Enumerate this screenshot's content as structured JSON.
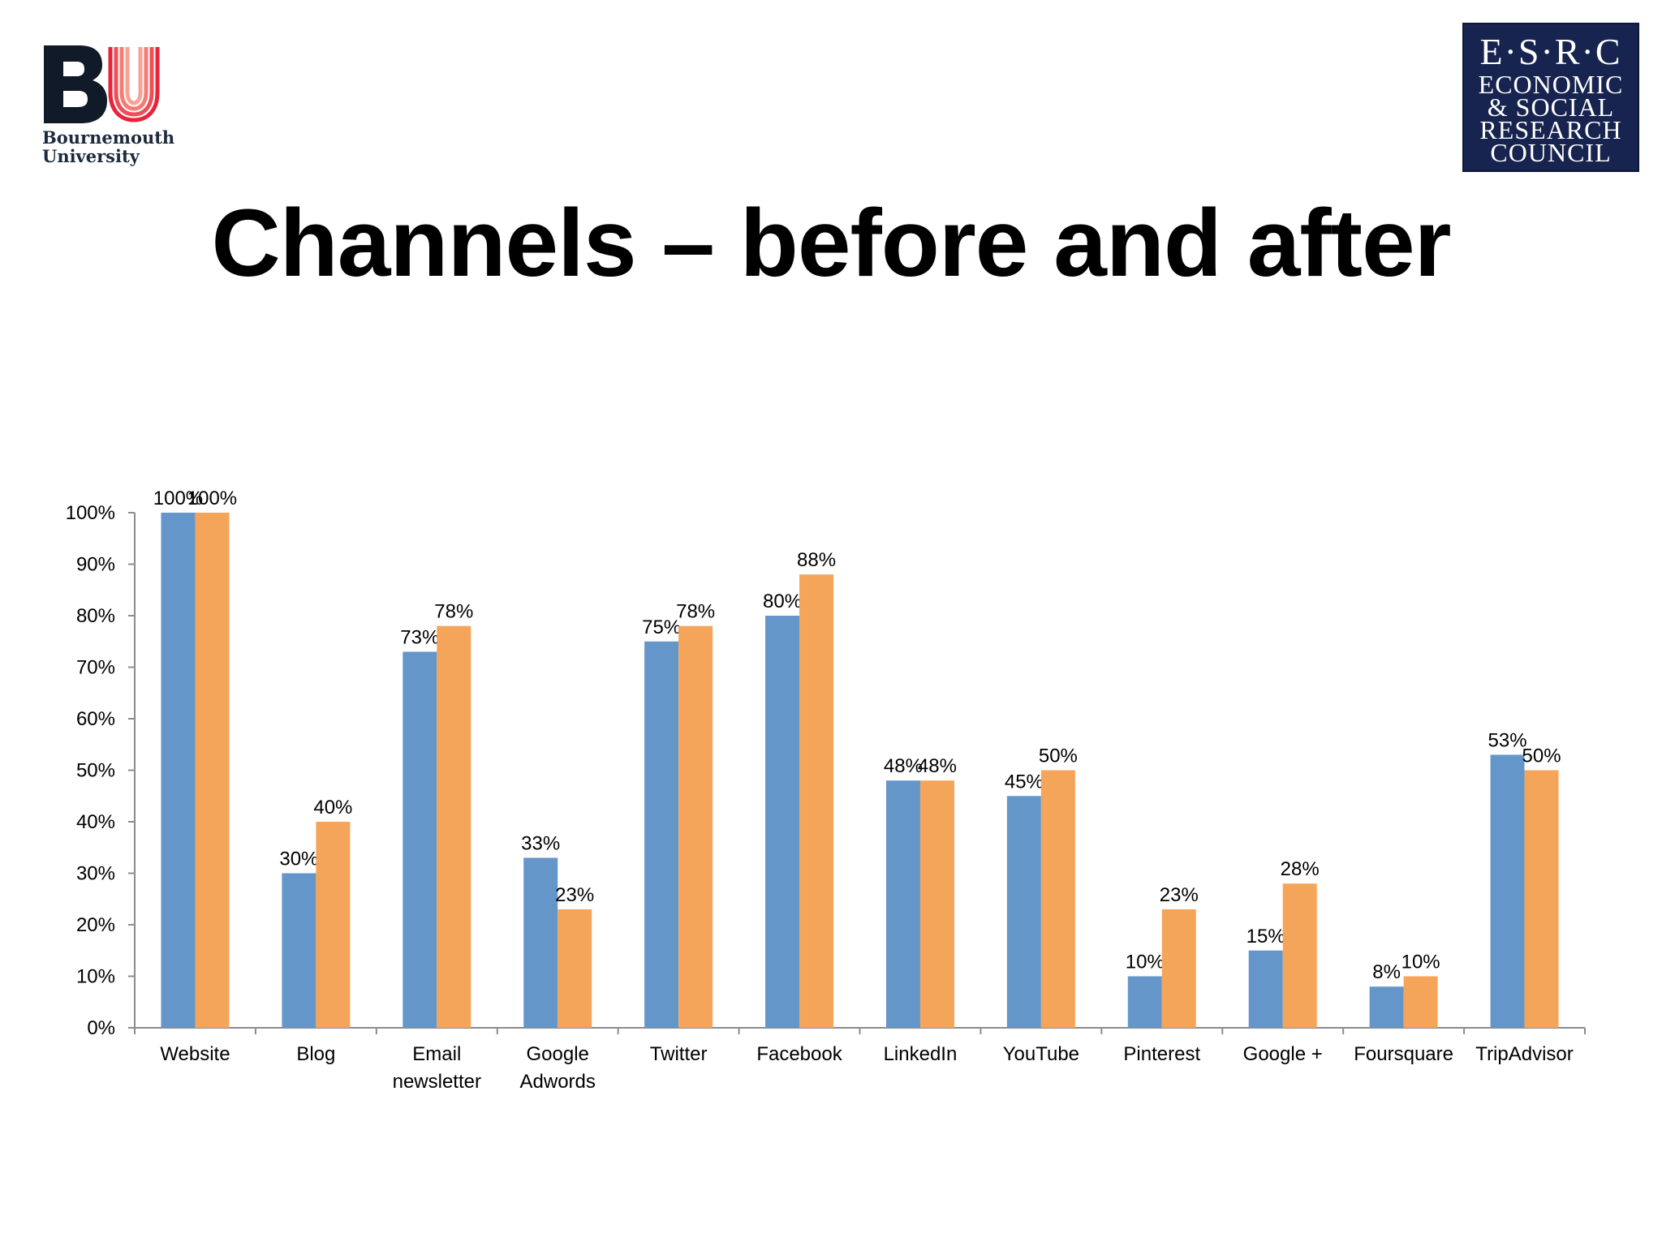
{
  "slide": {
    "title": "Channels – before and after"
  },
  "logos": {
    "left": {
      "mark": "BU",
      "line1": "Bournemouth",
      "line2": "University"
    },
    "right": {
      "top": "E·S·R·C",
      "lines": [
        "ECONOMIC",
        "& SOCIAL",
        "RESEARCH",
        "COUNCIL"
      ]
    }
  },
  "colors": {
    "before": "#6596ca",
    "after": "#f5a55a",
    "axis": "#8c8c8c",
    "text": "#000000",
    "esrc_bg": "#17244f"
  },
  "chart_data": {
    "type": "bar",
    "title": "",
    "xlabel": "",
    "ylabel": "",
    "ylim": [
      0,
      100
    ],
    "yticks": [
      "0%",
      "10%",
      "20%",
      "30%",
      "40%",
      "50%",
      "60%",
      "70%",
      "80%",
      "90%",
      "100%"
    ],
    "grid": false,
    "legend": "none",
    "categories": [
      [
        "Website"
      ],
      [
        "Blog"
      ],
      [
        "Email",
        "newsletter"
      ],
      [
        "Google",
        "Adwords"
      ],
      [
        "Twitter"
      ],
      [
        "Facebook"
      ],
      [
        "LinkedIn"
      ],
      [
        "YouTube"
      ],
      [
        "Pinterest"
      ],
      [
        "Google +"
      ],
      [
        "Foursquare"
      ],
      [
        "TripAdvisor"
      ]
    ],
    "series": [
      {
        "color": "#6596ca",
        "values": [
          100,
          30,
          73,
          33,
          75,
          80,
          48,
          45,
          10,
          15,
          8,
          53
        ],
        "labels": [
          "100%",
          "30%",
          "73%",
          "33%",
          "75%",
          "80%",
          "48%",
          "45%",
          "10%",
          "15%",
          "8%",
          "53%"
        ]
      },
      {
        "color": "#f5a55a",
        "values": [
          100,
          40,
          78,
          23,
          78,
          88,
          48,
          50,
          23,
          28,
          10,
          50
        ],
        "labels": [
          "100%",
          "40%",
          "78%",
          "23%",
          "78%",
          "88%",
          "48%",
          "50%",
          "23%",
          "28%",
          "10%",
          "50%"
        ]
      }
    ]
  }
}
